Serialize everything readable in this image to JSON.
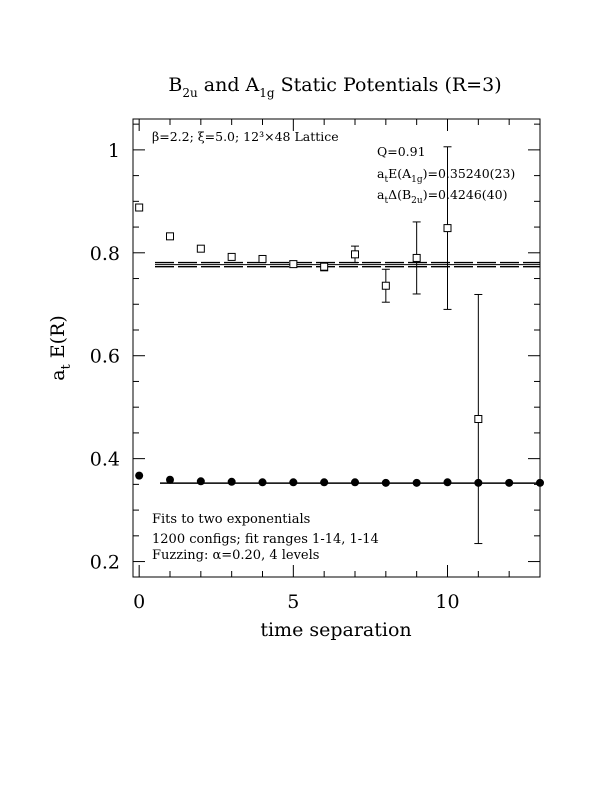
{
  "chart_data": {
    "type": "scatter",
    "title": {
      "main_a": "B",
      "sub_a": "2u",
      "main_b": " and A",
      "sub_b": "1g",
      "main_c": " Static Potentials (R=3)"
    },
    "xlabel": "time separation",
    "ylabel": {
      "main": "a",
      "sub": "t",
      "rest": " E(R)"
    },
    "xlim": [
      -0.2,
      13
    ],
    "ylim": [
      0.17,
      1.06
    ],
    "x_ticks": [
      0,
      5,
      10
    ],
    "x_tick_labels": [
      "0",
      "5",
      "10"
    ],
    "y_ticks": [
      0.2,
      0.4,
      0.6,
      0.8,
      1
    ],
    "y_tick_labels": [
      "0.2",
      "0.4",
      "0.6",
      "0.8",
      "1"
    ],
    "lattice_info": "β=2.2; ξ=5.0; 12³×48 Lattice",
    "fit_q": "Q=0.91",
    "fit_a1g": {
      "prefix": "a",
      "sub1": "t",
      "mid": "E(A",
      "sub2": "1g",
      "suffix": ")=0.35240(23)"
    },
    "fit_b2u": {
      "prefix": "a",
      "sub1": "t",
      "mid": "Δ(B",
      "sub2": "2u",
      "suffix": ")=0.4246(40)"
    },
    "notes": [
      "Fits to two exponentials",
      "1200 configs; fit ranges 1-14, 1-14",
      "Fuzzing: α=0.20, 4 levels"
    ],
    "series": [
      {
        "marker": "filled-circle",
        "points": [
          {
            "x": 0,
            "y": 0.367,
            "err": 0.002
          },
          {
            "x": 1,
            "y": 0.359,
            "err": 0.002
          },
          {
            "x": 2,
            "y": 0.356,
            "err": 0.002
          },
          {
            "x": 3,
            "y": 0.355,
            "err": 0.002
          },
          {
            "x": 4,
            "y": 0.354,
            "err": 0.002
          },
          {
            "x": 5,
            "y": 0.354,
            "err": 0.002
          },
          {
            "x": 6,
            "y": 0.354,
            "err": 0.002
          },
          {
            "x": 7,
            "y": 0.354,
            "err": 0.002
          },
          {
            "x": 8,
            "y": 0.353,
            "err": 0.002
          },
          {
            "x": 9,
            "y": 0.353,
            "err": 0.002
          },
          {
            "x": 10,
            "y": 0.354,
            "err": 0.003
          },
          {
            "x": 11,
            "y": 0.353,
            "err": 0.003
          },
          {
            "x": 12,
            "y": 0.353,
            "err": 0.003
          },
          {
            "x": 13,
            "y": 0.353,
            "err": 0.003
          }
        ],
        "fit_band": [
          0.3522,
          0.3526
        ]
      },
      {
        "marker": "open-square",
        "points": [
          {
            "x": 0,
            "y": 0.888,
            "err": 0.004
          },
          {
            "x": 1,
            "y": 0.832,
            "err": 0.004
          },
          {
            "x": 2,
            "y": 0.808,
            "err": 0.004
          },
          {
            "x": 3,
            "y": 0.792,
            "err": 0.005
          },
          {
            "x": 4,
            "y": 0.788,
            "err": 0.005
          },
          {
            "x": 5,
            "y": 0.778,
            "err": 0.006
          },
          {
            "x": 6,
            "y": 0.773,
            "err": 0.008
          },
          {
            "x": 7,
            "y": 0.797,
            "err": 0.016
          },
          {
            "x": 8,
            "y": 0.736,
            "err": 0.032
          },
          {
            "x": 9,
            "y": 0.79,
            "err": 0.07
          },
          {
            "x": 10,
            "y": 0.848,
            "err": 0.158
          },
          {
            "x": 11,
            "y": 0.477,
            "err": 0.242
          }
        ],
        "fit_band": [
          0.773,
          0.781
        ]
      }
    ]
  }
}
